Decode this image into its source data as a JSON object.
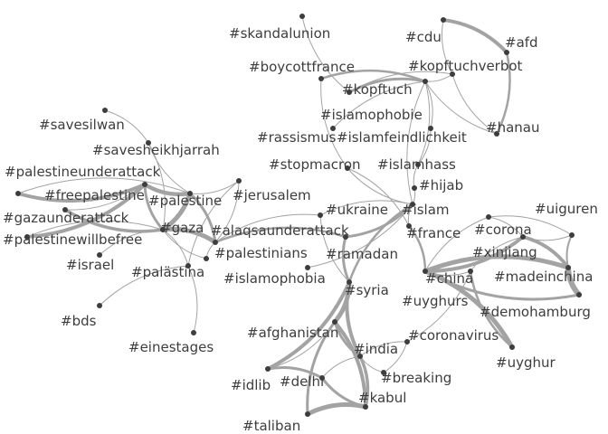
{
  "nodes": [
    {
      "id": "skandalunion",
      "label": "#skandalunion"
    },
    {
      "id": "cdu",
      "label": "#cdu"
    },
    {
      "id": "afd",
      "label": "#afd"
    },
    {
      "id": "boycottfrance",
      "label": "#boycottfrance"
    },
    {
      "id": "kopftuchverbot",
      "label": "#kopftuchverbot"
    },
    {
      "id": "kopftuch",
      "label": "#kopftuch"
    },
    {
      "id": "islamophobie",
      "label": "#islamophobie"
    },
    {
      "id": "savesilwan",
      "label": "#savesilwan"
    },
    {
      "id": "hanau",
      "label": "#hanau"
    },
    {
      "id": "rassismus",
      "label": "#rassismus"
    },
    {
      "id": "islamfeindlichkeit",
      "label": "#islamfeindlichkeit"
    },
    {
      "id": "savesheikhjarrah",
      "label": "#savesheikhjarrah"
    },
    {
      "id": "stopmacron",
      "label": "#stopmacron"
    },
    {
      "id": "islamhass",
      "label": "#islamhass"
    },
    {
      "id": "palestineunderattack",
      "label": "#palestineunderattack"
    },
    {
      "id": "hijab",
      "label": "#hijab"
    },
    {
      "id": "freepalestine",
      "label": "#freepalestine"
    },
    {
      "id": "palestine",
      "label": "#palestine"
    },
    {
      "id": "jerusalem",
      "label": "#jerusalem"
    },
    {
      "id": "uiguren",
      "label": "#uiguren"
    },
    {
      "id": "gazaunderattack",
      "label": "#gazaunderattack"
    },
    {
      "id": "ukraine",
      "label": "#ukraine"
    },
    {
      "id": "islam",
      "label": "#islam"
    },
    {
      "id": "gaza",
      "label": "#gaza"
    },
    {
      "id": "alaqsaunderattack",
      "label": "#alaqsaunderattack"
    },
    {
      "id": "corona",
      "label": "#corona"
    },
    {
      "id": "palestinewillbefree",
      "label": "#palestinewillbefree"
    },
    {
      "id": "france",
      "label": "#france"
    },
    {
      "id": "palestinians",
      "label": "#palestinians"
    },
    {
      "id": "xinjiang",
      "label": "#xinjiang"
    },
    {
      "id": "ramadan",
      "label": "#ramadan"
    },
    {
      "id": "israel",
      "label": "#israel"
    },
    {
      "id": "palastina",
      "label": "#palästina"
    },
    {
      "id": "china",
      "label": "#china"
    },
    {
      "id": "madeinchina",
      "label": "#madeinchina"
    },
    {
      "id": "islamophobia",
      "label": "#islamophobia"
    },
    {
      "id": "syria",
      "label": "#syria"
    },
    {
      "id": "uyghurs",
      "label": "#uyghurs"
    },
    {
      "id": "demohamburg",
      "label": "#demohamburg"
    },
    {
      "id": "bds",
      "label": "#bds"
    },
    {
      "id": "afghanistan",
      "label": "#afghanistan"
    },
    {
      "id": "coronavirus",
      "label": "#coronavirus"
    },
    {
      "id": "einestages",
      "label": "#einestages"
    },
    {
      "id": "india",
      "label": "#india"
    },
    {
      "id": "uyghur",
      "label": "#uyghur"
    },
    {
      "id": "breaking",
      "label": "#breaking"
    },
    {
      "id": "idlib",
      "label": "#idlib"
    },
    {
      "id": "delhi",
      "label": "#delhi"
    },
    {
      "id": "kabul",
      "label": "#kabul"
    },
    {
      "id": "taliban",
      "label": "#taliban"
    }
  ],
  "edges": [
    [
      "skandalunion",
      "kopftuch"
    ],
    [
      "cdu",
      "afd"
    ],
    [
      "cdu",
      "kopftuchverbot"
    ],
    [
      "afd",
      "hanau"
    ],
    [
      "kopftuchverbot",
      "kopftuch"
    ],
    [
      "kopftuchverbot",
      "islamophobie"
    ],
    [
      "kopftuchverbot",
      "hanau"
    ],
    [
      "boycottfrance",
      "islamophobie"
    ],
    [
      "boycottfrance",
      "stopmacron"
    ],
    [
      "kopftuch",
      "islamophobie"
    ],
    [
      "islamophobie",
      "rassismus"
    ],
    [
      "islamophobie",
      "islamfeindlichkeit"
    ],
    [
      "islamophobie",
      "hanau"
    ],
    [
      "islamophobie",
      "islamhass"
    ],
    [
      "islamophobie",
      "islam"
    ],
    [
      "islamfeindlichkeit",
      "islamhass"
    ],
    [
      "islamhass",
      "hijab"
    ],
    [
      "stopmacron",
      "france"
    ],
    [
      "stopmacron",
      "islam"
    ],
    [
      "hijab",
      "islam"
    ],
    [
      "islam",
      "france"
    ],
    [
      "islam",
      "ramadan"
    ],
    [
      "islam",
      "ukraine"
    ],
    [
      "islam",
      "islamophobia"
    ],
    [
      "islam",
      "syria"
    ],
    [
      "savesilwan",
      "savesheikhjarrah"
    ],
    [
      "savesheikhjarrah",
      "palestine"
    ],
    [
      "savesheikhjarrah",
      "gaza"
    ],
    [
      "palestineunderattack",
      "freepalestine"
    ],
    [
      "palestineunderattack",
      "palestine"
    ],
    [
      "freepalestine",
      "palestine"
    ],
    [
      "freepalestine",
      "gazaunderattack"
    ],
    [
      "freepalestine",
      "gaza"
    ],
    [
      "palestine",
      "gaza"
    ],
    [
      "palestine",
      "jerusalem"
    ],
    [
      "palestine",
      "alaqsaunderattack"
    ],
    [
      "gazaunderattack",
      "gaza"
    ],
    [
      "palestinewillbefree",
      "gaza"
    ],
    [
      "palestinewillbefree",
      "freepalestine"
    ],
    [
      "gaza",
      "alaqsaunderattack"
    ],
    [
      "gaza",
      "israel"
    ],
    [
      "gaza",
      "palastina"
    ],
    [
      "gaza",
      "palestinians"
    ],
    [
      "jerusalem",
      "alaqsaunderattack"
    ],
    [
      "jerusalem",
      "palastina"
    ],
    [
      "alaqsaunderattack",
      "ramadan"
    ],
    [
      "alaqsaunderattack",
      "palestinians"
    ],
    [
      "alaqsaunderattack",
      "ukraine"
    ],
    [
      "palastina",
      "bds"
    ],
    [
      "palastina",
      "einestages"
    ],
    [
      "uiguren",
      "corona"
    ],
    [
      "uiguren",
      "xinjiang"
    ],
    [
      "uiguren",
      "madeinchina"
    ],
    [
      "corona",
      "xinjiang"
    ],
    [
      "corona",
      "china"
    ],
    [
      "xinjiang",
      "china"
    ],
    [
      "xinjiang",
      "uyghurs"
    ],
    [
      "xinjiang",
      "madeinchina"
    ],
    [
      "china",
      "uyghurs"
    ],
    [
      "china",
      "madeinchina"
    ],
    [
      "china",
      "demohamburg"
    ],
    [
      "china",
      "uyghur"
    ],
    [
      "uyghurs",
      "uyghur"
    ],
    [
      "uyghurs",
      "coronavirus"
    ],
    [
      "madeinchina",
      "demohamburg"
    ],
    [
      "france",
      "china"
    ],
    [
      "ramadan",
      "syria"
    ],
    [
      "syria",
      "afghanistan"
    ],
    [
      "syria",
      "india"
    ],
    [
      "syria",
      "idlib"
    ],
    [
      "afghanistan",
      "india"
    ],
    [
      "afghanistan",
      "kabul"
    ],
    [
      "afghanistan",
      "taliban"
    ],
    [
      "afghanistan",
      "idlib"
    ],
    [
      "india",
      "delhi"
    ],
    [
      "india",
      "kabul"
    ],
    [
      "kabul",
      "taliban"
    ],
    [
      "kabul",
      "delhi"
    ],
    [
      "delhi",
      "idlib"
    ],
    [
      "coronavirus",
      "breaking"
    ],
    [
      "coronavirus",
      "india"
    ],
    [
      "breaking",
      "india"
    ],
    [
      "ukraine",
      "syria"
    ]
  ]
}
